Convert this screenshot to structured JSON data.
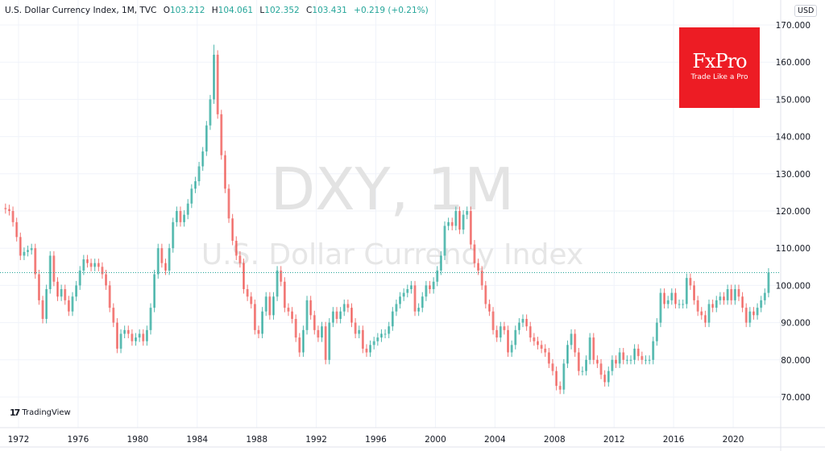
{
  "header": {
    "symbol": "U.S. Dollar Currency Index, 1M, TVC",
    "open_label": "O",
    "open": "103.212",
    "high_label": "H",
    "high": "104.061",
    "low_label": "L",
    "low": "102.352",
    "close_label": "C",
    "close": "103.431",
    "change": "+0.219 (+0.21%)"
  },
  "currency_badge": "USD",
  "watermark": {
    "line1": "DXY, 1M",
    "line2": "U.S. Dollar Currency Index"
  },
  "logo": {
    "brand": "FxPro",
    "tagline": "Trade Like a Pro",
    "color": "#ed1c24"
  },
  "attribution": "TradingView",
  "colors": {
    "up": "#26a69a",
    "down": "#ef5350",
    "grid": "#f0f3fa",
    "watermark": "#e3e3e3"
  },
  "chart_data": {
    "type": "candlestick",
    "interval": "1M",
    "start_year": 1971,
    "points_per_year": 4,
    "closes": [
      120.5,
      120,
      117,
      113,
      108,
      109,
      109.5,
      110,
      103,
      96,
      91,
      99,
      108,
      101,
      97,
      99,
      96,
      93,
      97,
      100,
      104,
      107,
      106,
      105,
      106,
      105,
      103,
      100,
      94,
      90,
      83,
      87,
      88,
      87,
      85,
      86,
      87,
      85,
      88,
      94,
      103,
      110,
      106,
      104,
      110,
      117,
      120,
      117,
      119,
      122,
      126,
      128,
      132,
      136,
      143,
      150,
      162,
      146,
      135,
      126,
      118,
      112,
      108,
      106,
      99,
      97,
      95,
      88,
      87,
      93,
      97,
      92,
      97,
      104,
      101,
      94,
      93,
      91,
      86,
      82,
      88,
      96,
      92,
      88,
      86,
      89,
      80,
      90,
      93,
      91,
      93,
      95,
      94,
      90,
      87,
      88,
      83,
      82,
      84,
      85,
      86,
      87,
      87,
      89,
      93,
      95,
      97,
      98,
      99,
      100,
      93,
      94,
      97,
      100,
      99,
      101,
      104,
      108,
      116,
      117,
      116,
      120,
      115,
      119,
      120,
      111,
      106,
      104,
      100,
      95,
      93,
      88,
      86,
      89,
      88,
      82,
      84,
      88,
      90,
      91,
      89,
      86,
      85,
      84,
      83,
      82,
      79,
      77,
      73,
      72,
      79,
      84,
      87,
      82,
      77,
      77,
      80,
      86,
      80,
      79,
      76,
      74,
      77,
      80,
      79,
      82,
      80,
      80,
      80,
      83,
      81,
      80,
      80,
      80,
      85,
      90,
      98,
      95,
      96,
      98,
      95,
      95,
      95,
      102,
      100,
      96,
      93,
      92,
      90,
      95,
      94,
      96,
      97,
      96,
      99,
      96,
      99,
      97,
      94,
      90,
      93,
      92,
      94,
      96,
      98,
      103.431
    ],
    "peak": 164.7,
    "last_price": 103.431,
    "x_ticks": [
      "1972",
      "1976",
      "1980",
      "1984",
      "1988",
      "1992",
      "1996",
      "2000",
      "2004",
      "2008",
      "2012",
      "2016",
      "2020"
    ],
    "y_ticks": [
      "170.000",
      "160.000",
      "150.000",
      "140.000",
      "130.000",
      "120.000",
      "110.000",
      "100.000",
      "90.000",
      "80.000",
      "70.000"
    ],
    "ylim": [
      70,
      170
    ],
    "grid": true
  }
}
